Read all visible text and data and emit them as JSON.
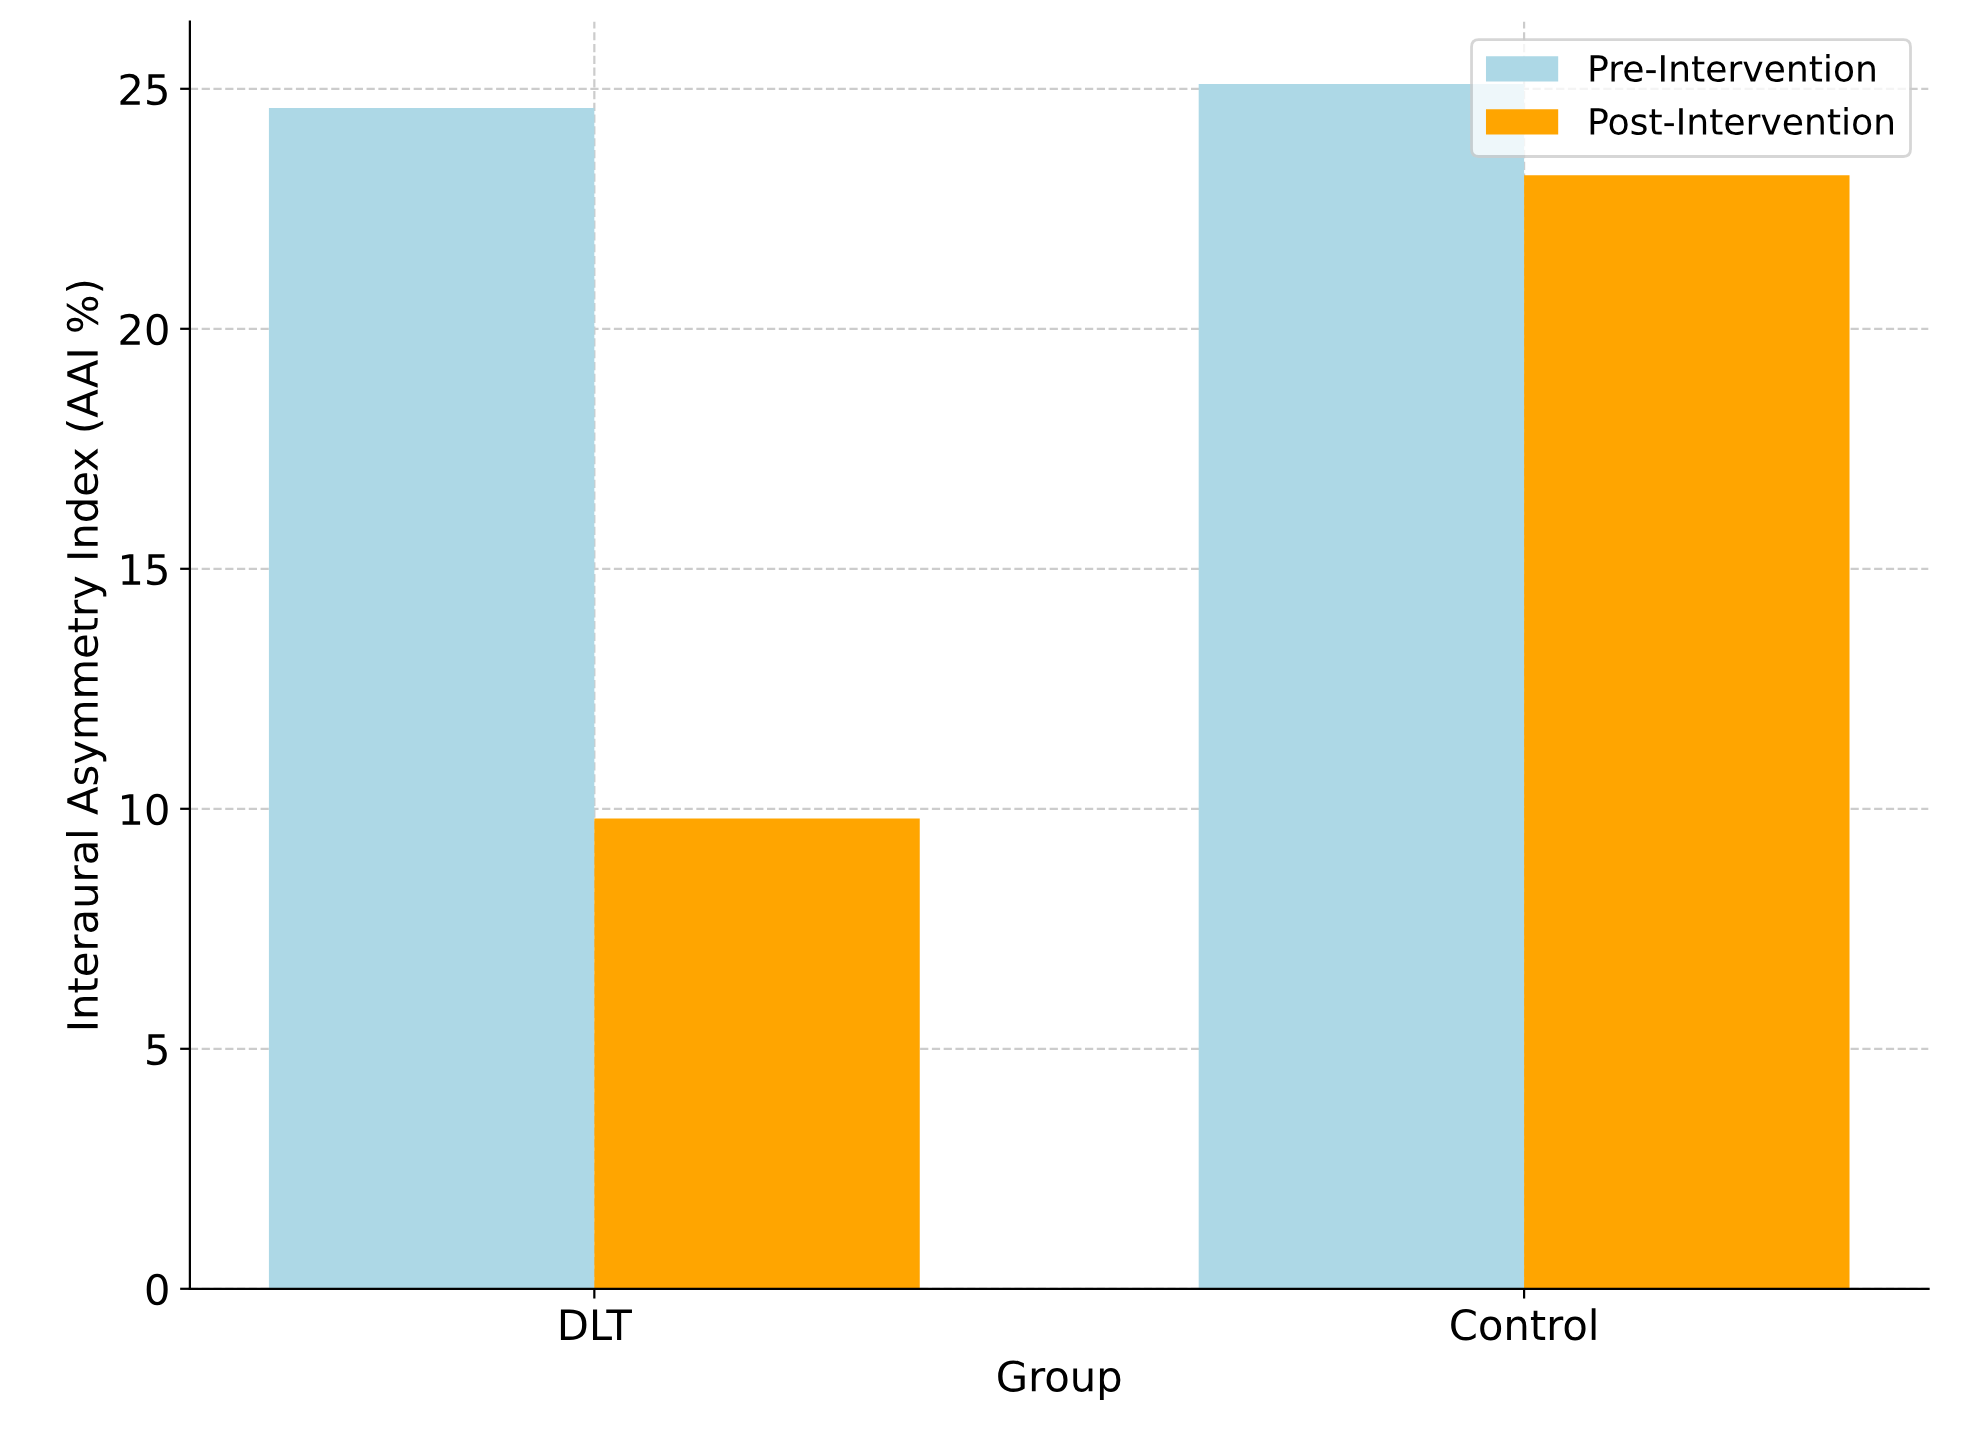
{
  "chart_data": {
    "type": "bar",
    "xlabel": "Group",
    "ylabel": "Interaural Asymmetry Index (AAI %)",
    "categories": [
      "DLT",
      "Control"
    ],
    "series": [
      {
        "name": "Pre-Intervention",
        "color": "#add8e6",
        "values": [
          24.6,
          25.1
        ]
      },
      {
        "name": "Post-Intervention",
        "color": "#ffa500",
        "values": [
          9.8,
          23.2
        ]
      }
    ],
    "ylim": [
      0,
      26.4
    ],
    "yticks": [
      0,
      5,
      10,
      15,
      20,
      25
    ],
    "grid": true,
    "legend": "top right"
  }
}
